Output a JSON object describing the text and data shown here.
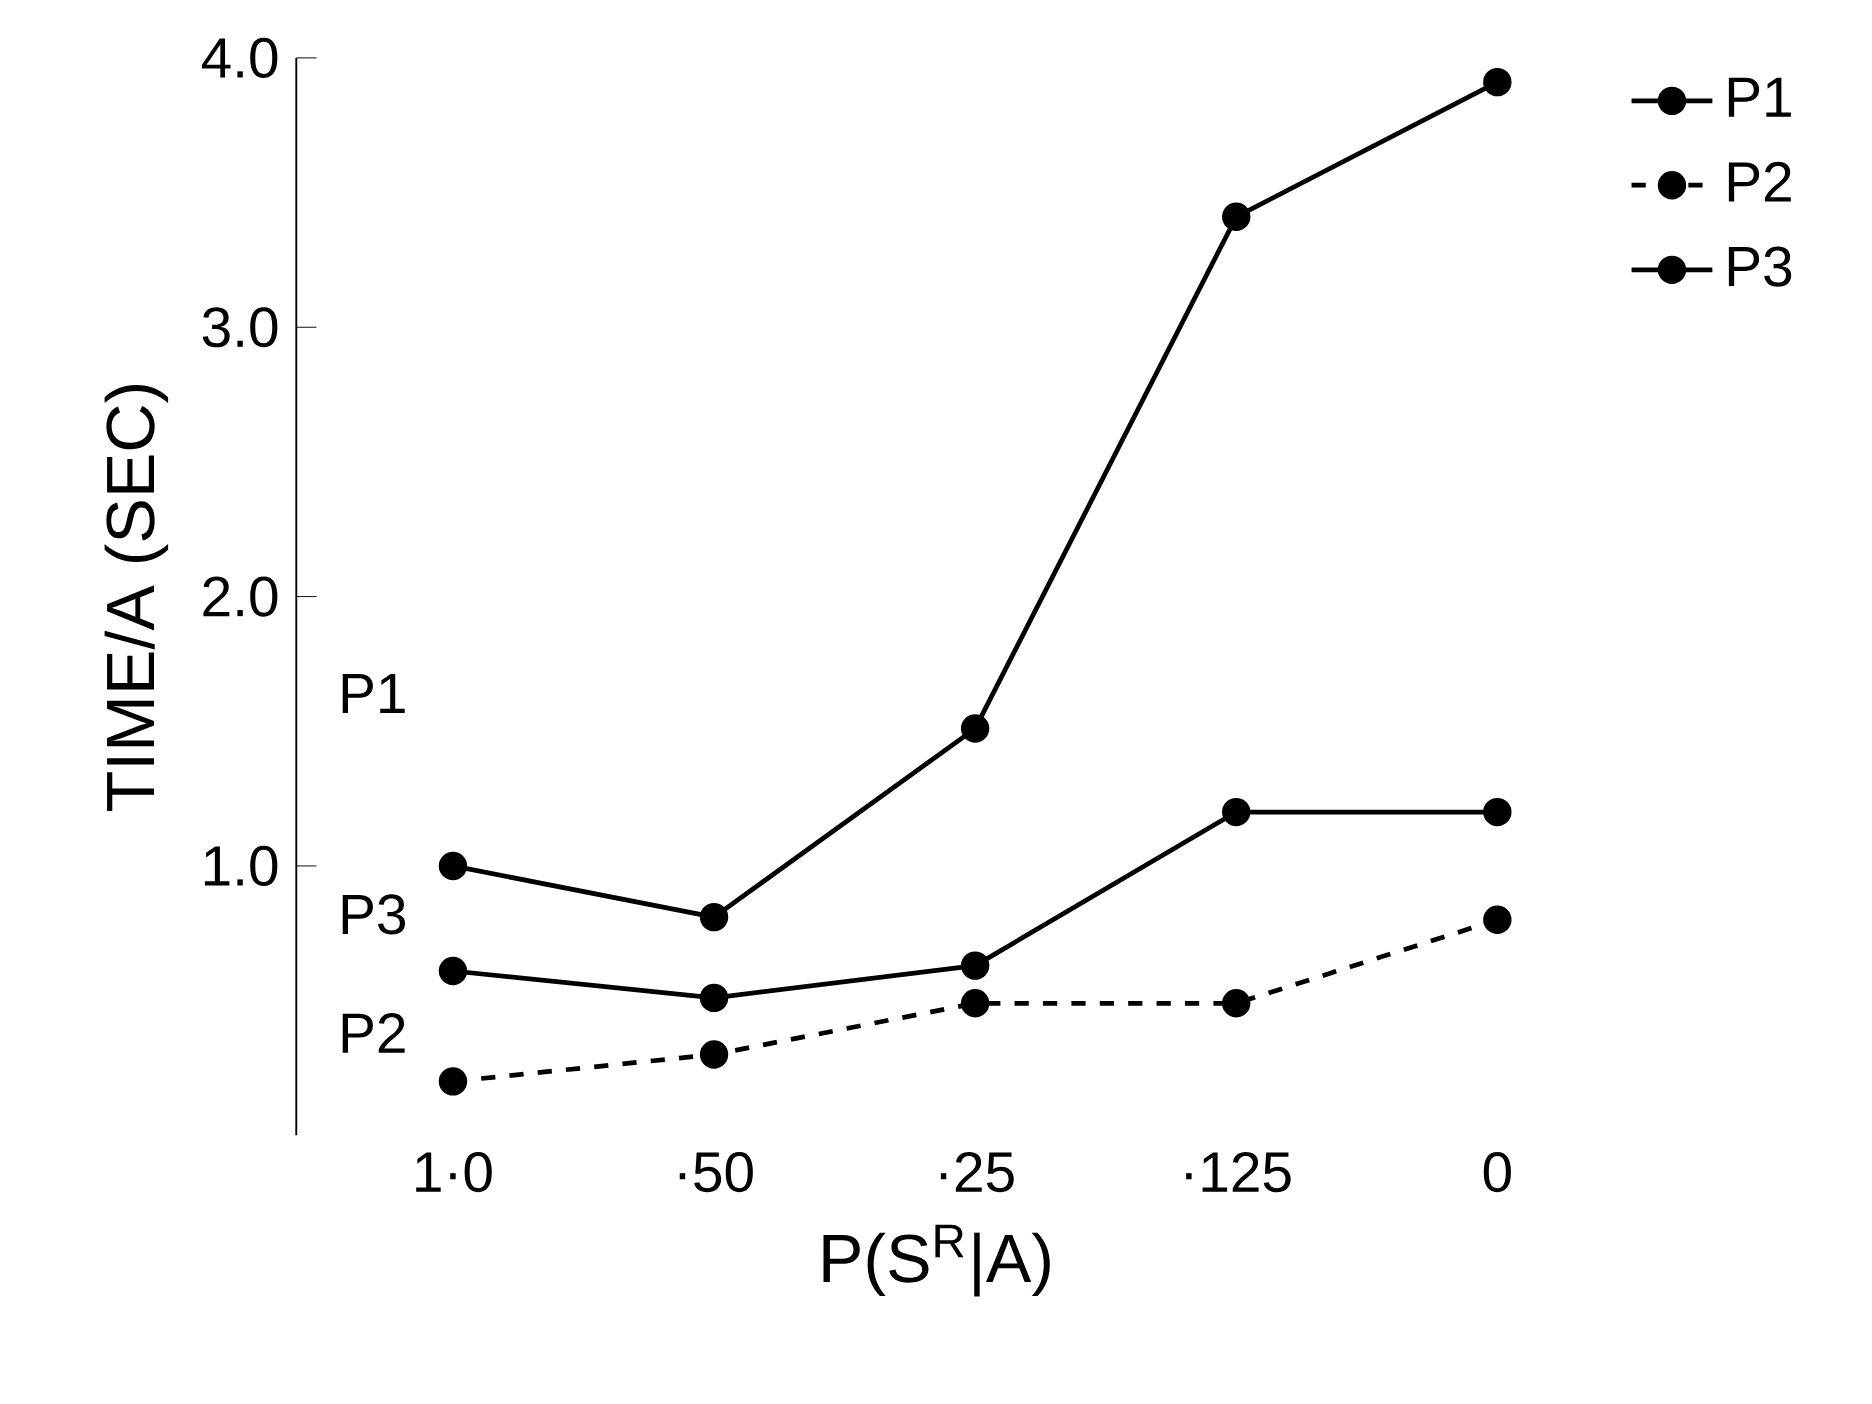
{
  "chart_data": {
    "type": "line",
    "xlabel": "P(S$^{R}$|A)",
    "ylabel": "TIME/A (SEC)",
    "categories": [
      "1·0",
      "·50",
      "·25",
      "·125",
      "0"
    ],
    "ylim": [
      0,
      4
    ],
    "yticks": [
      {
        "value": 1,
        "label": "1.0"
      },
      {
        "value": 2,
        "label": "2.0"
      },
      {
        "value": 3,
        "label": "3.0"
      },
      {
        "value": 4,
        "label": "4.0"
      }
    ],
    "marker": "circle",
    "legend": "right",
    "series": [
      {
        "name": "P1",
        "color": "#000000",
        "line_style": "solid",
        "values": [
          1.0,
          0.81,
          1.51,
          3.41,
          3.91
        ]
      },
      {
        "name": "P2",
        "color": "#000000",
        "line_style": "dashed",
        "values": [
          0.2,
          0.3,
          0.49,
          0.49,
          0.8
        ]
      },
      {
        "name": "P3",
        "color": "#000000",
        "line_style": "solid",
        "values": [
          0.61,
          0.51,
          0.63,
          1.2,
          1.2
        ]
      }
    ],
    "annotations": [
      "P1",
      "P2",
      "P3"
    ]
  }
}
